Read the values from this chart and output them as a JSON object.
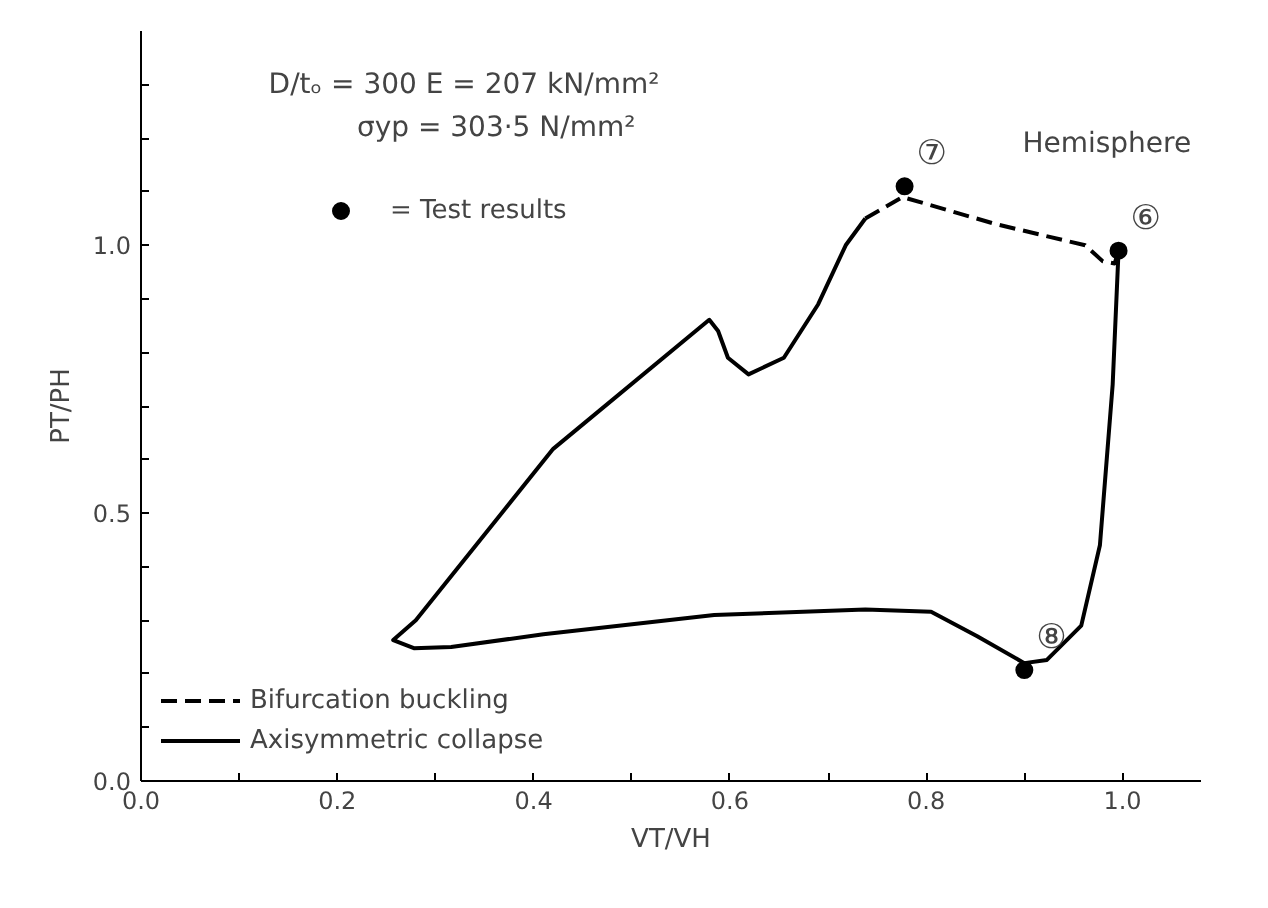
{
  "chart_data": {
    "type": "line",
    "xlabel": "VT/VH",
    "ylabel": "PT/PH",
    "xlim": [
      0,
      1.08
    ],
    "ylim": [
      0,
      1.4
    ],
    "xticks": [
      {
        "value": 0,
        "label": "0.0"
      },
      {
        "value": 0.1,
        "label": null
      },
      {
        "value": 0.2,
        "label": "0.2"
      },
      {
        "value": 0.3,
        "label": null
      },
      {
        "value": 0.4,
        "label": "0.4"
      },
      {
        "value": 0.5,
        "label": null
      },
      {
        "value": 0.6,
        "label": "0.6"
      },
      {
        "value": 0.7,
        "label": null
      },
      {
        "value": 0.8,
        "label": "0.8"
      },
      {
        "value": 0.9,
        "label": null
      },
      {
        "value": 1.0,
        "label": "1.0"
      }
    ],
    "yticks": [
      {
        "value": 0,
        "label": "0.0"
      },
      {
        "value": 0.1,
        "label": null
      },
      {
        "value": 0.2,
        "label": null
      },
      {
        "value": 0.3,
        "label": null
      },
      {
        "value": 0.4,
        "label": null
      },
      {
        "value": 0.5,
        "label": "0.5"
      },
      {
        "value": 0.6,
        "label": null
      },
      {
        "value": 0.7,
        "label": null
      },
      {
        "value": 0.8,
        "label": null
      },
      {
        "value": 0.9,
        "label": null
      },
      {
        "value": 1.0,
        "label": "1.0"
      },
      {
        "value": 1.1,
        "label": null
      },
      {
        "value": 1.2,
        "label": null
      },
      {
        "value": 1.3,
        "label": null
      }
    ],
    "grid": false,
    "legend": "bottom left",
    "series": [
      {
        "name": "Bifurcation buckling",
        "line_style": "dashed",
        "color": "#000000",
        "x": [
          0.738,
          0.776,
          0.87,
          0.962,
          0.98,
          0.992,
          0.996
        ],
        "values": [
          1.05,
          1.09,
          1.04,
          1.0,
          0.97,
          0.966,
          0.99
        ]
      },
      {
        "name": "Axisymmetric collapse",
        "line_style": "solid",
        "color": "#000000",
        "x": [
          0.738,
          0.718,
          0.69,
          0.655,
          0.619,
          0.598,
          0.588,
          0.579,
          0.42,
          0.28,
          0.257,
          0.278,
          0.316,
          0.41,
          0.584,
          0.738,
          0.805,
          0.852,
          0.9,
          0.923,
          0.958,
          0.977,
          0.99,
          0.996
        ],
        "values": [
          1.05,
          1.0,
          0.89,
          0.79,
          0.759,
          0.79,
          0.84,
          0.861,
          0.62,
          0.3,
          0.263,
          0.248,
          0.25,
          0.274,
          0.31,
          0.32,
          0.316,
          0.27,
          0.22,
          0.226,
          0.29,
          0.44,
          0.74,
          0.99
        ]
      },
      {
        "name": "= Test results",
        "type": "scatter",
        "marker": "circle",
        "color": "#000000",
        "x": [
          0.778,
          0.996,
          0.9
        ],
        "values": [
          1.11,
          0.99,
          0.207
        ]
      }
    ],
    "annotations": [
      "D/tₒ = 300     E = 207 kN/mm²",
      "σyp = 303·5 N/mm²",
      "Hemisphere",
      {
        "text": "⑦",
        "x": 0.778,
        "y": 1.11
      },
      {
        "text": "⑥",
        "x": 0.996,
        "y": 0.99
      },
      {
        "text": "⑧",
        "x": 0.9,
        "y": 0.207
      }
    ]
  }
}
